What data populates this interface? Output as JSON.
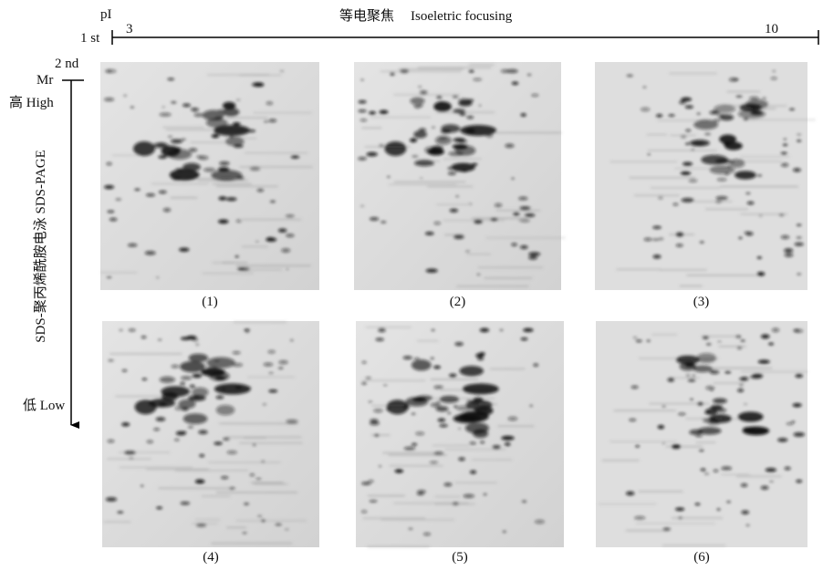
{
  "axis": {
    "pi_label": "pI",
    "first_dim": "1 st",
    "pi_start": 3,
    "pi_end": 10,
    "title_cn": "等电聚焦",
    "title_en": "Isoeletric focusing",
    "second_dim": "2 nd",
    "mr_label": "Mr",
    "high": "高 High",
    "low": "低 Low",
    "vertical_title": "SDS-聚丙烯酰胺电泳  SDS-PAGE"
  },
  "panels": [
    {
      "label": "(1)"
    },
    {
      "label": "(2)"
    },
    {
      "label": "(3)"
    },
    {
      "label": "(4)"
    },
    {
      "label": "(5)"
    },
    {
      "label": "(6)"
    }
  ]
}
